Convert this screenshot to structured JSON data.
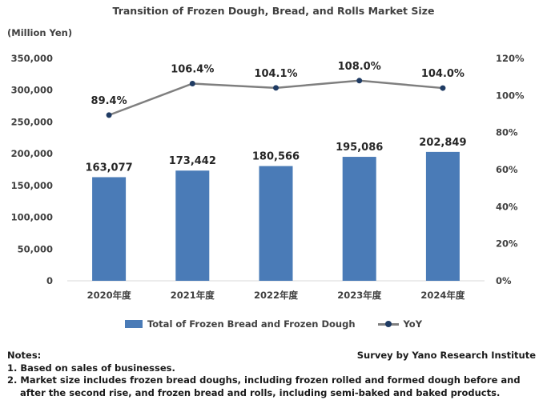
{
  "chart_data": {
    "type": "bar",
    "title": "Transition of Frozen Dough, Bread, and Rolls Market Size",
    "ylabel": "(Million Yen)",
    "categories": [
      "2020年度",
      "2021年度",
      "2022年度",
      "2023年度",
      "2024年度"
    ],
    "ylim": [
      0,
      350000
    ],
    "y_ticks": [
      "0",
      "50,000",
      "100,000",
      "150,000",
      "200,000",
      "250,000",
      "300,000",
      "350,000"
    ],
    "y2lim": [
      0,
      120
    ],
    "y2_ticks": [
      "0%",
      "20%",
      "40%",
      "60%",
      "80%",
      "100%",
      "120%"
    ],
    "series": [
      {
        "name": "Total of Frozen Bread and Frozen Dough",
        "type": "bar",
        "axis": "left",
        "color": "#4a7bb7",
        "values": [
          163077,
          173442,
          180566,
          195086,
          202849
        ],
        "labels": [
          "163,077",
          "173,442",
          "180,566",
          "195,086",
          "202,849"
        ]
      },
      {
        "name": "YoY",
        "type": "line",
        "axis": "right",
        "color": "#7f7f7f",
        "marker_color": "#1f3b63",
        "values": [
          89.4,
          106.4,
          104.1,
          108.0,
          104.0
        ],
        "labels": [
          "89.4%",
          "106.4%",
          "104.1%",
          "108.0%",
          "104.0%"
        ]
      }
    ],
    "grid": false,
    "legend": "bottom"
  },
  "notes": {
    "heading": "Notes:",
    "items": [
      "1. Based on sales of businesses.",
      "2. Market size includes frozen bread doughs, including frozen rolled and formed dough before and",
      "    after the second rise, and frozen bread and rolls, including semi-baked and baked products."
    ]
  },
  "source": "Survey by Yano Research Institute"
}
